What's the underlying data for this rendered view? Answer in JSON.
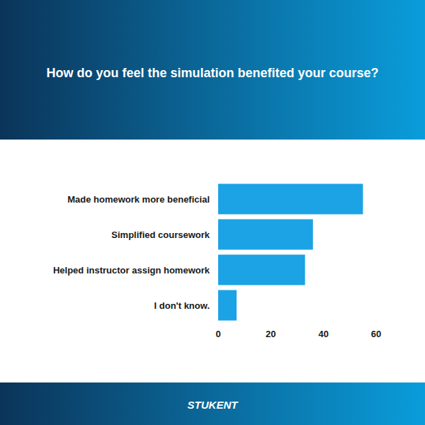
{
  "chart_data": {
    "type": "bar",
    "title": "How do you feel the simulation benefited your course?",
    "categories": [
      "Made homework more beneficial",
      "Simplified coursework",
      "Helped instructor assign homework",
      "I don't know."
    ],
    "values": [
      55,
      36,
      33,
      7
    ],
    "color": "#1ba3e5",
    "xlim": [
      0,
      60
    ],
    "xticks": [
      0,
      20,
      40,
      60
    ],
    "grid": false,
    "orientation": "horizontal",
    "annotations": [
      "STUKENT"
    ]
  }
}
